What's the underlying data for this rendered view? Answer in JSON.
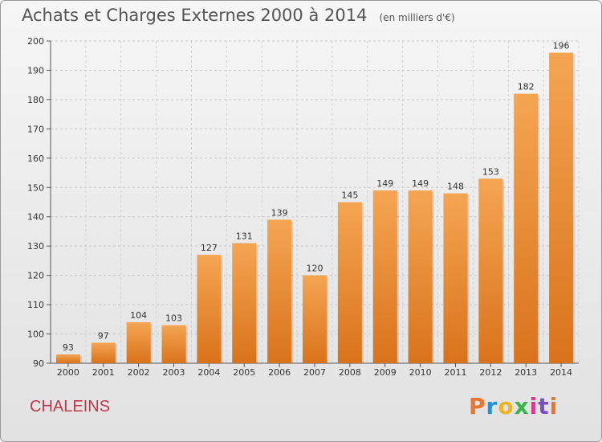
{
  "header": {
    "title": "Achats et Charges Externes 2000 à 2014",
    "unit": "(en milliers d'€)"
  },
  "footer": {
    "commune": "CHALEINS",
    "logo_text": "Proxiti",
    "logo_colors": [
      "#e8762c",
      "#2c8fd6",
      "#f2b41e",
      "#3ab54a",
      "#d93a8c",
      "#7a4fc4",
      "#e8762c"
    ]
  },
  "chart_data": {
    "type": "bar",
    "categories": [
      "2000",
      "2001",
      "2002",
      "2003",
      "2004",
      "2005",
      "2006",
      "2007",
      "2008",
      "2009",
      "2010",
      "2011",
      "2012",
      "2013",
      "2014"
    ],
    "values": [
      93,
      97,
      104,
      103,
      127,
      131,
      139,
      120,
      145,
      149,
      149,
      148,
      153,
      182,
      196
    ],
    "title": "Achats et Charges Externes 2000 à 2014",
    "ylim": [
      90,
      200
    ],
    "yticks": [
      90,
      100,
      110,
      120,
      130,
      140,
      150,
      160,
      170,
      180,
      190,
      200
    ],
    "grid": true,
    "bar_color_top": "#f5a552",
    "bar_color_bottom": "#d9731b"
  }
}
